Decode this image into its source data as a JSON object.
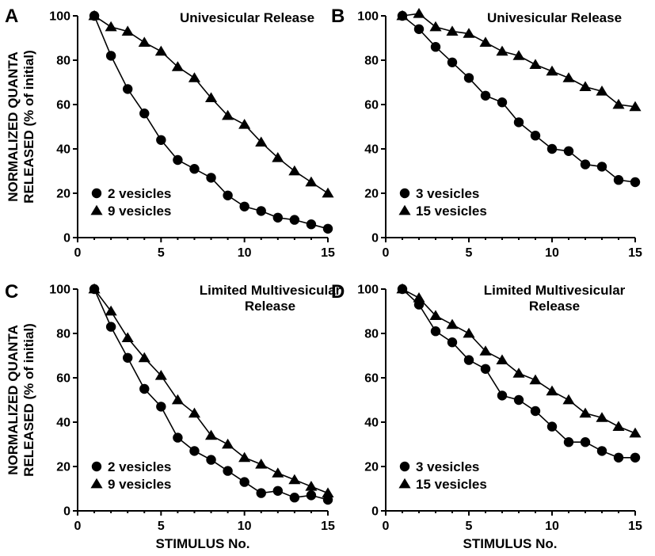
{
  "figure": {
    "ylabel_lines": [
      "NORMALIZED QUANTA",
      "RELEASED (% of initial)"
    ],
    "xlabel": "STIMULUS No."
  },
  "chart_data": [
    {
      "type": "line",
      "panel_label": "A",
      "title_lines": [
        "Univesicular Release"
      ],
      "xlim": [
        0,
        15
      ],
      "ylim": [
        0,
        100
      ],
      "xticks": [
        0,
        5,
        10,
        15
      ],
      "yticks": [
        0,
        20,
        40,
        60,
        80,
        100
      ],
      "x": [
        1,
        2,
        3,
        4,
        5,
        6,
        7,
        8,
        9,
        10,
        11,
        12,
        13,
        14,
        15
      ],
      "series": [
        {
          "name": "2 vesicles",
          "marker": "circle",
          "values": [
            100,
            82,
            67,
            56,
            44,
            35,
            31,
            27,
            19,
            14,
            12,
            9,
            8,
            6,
            4
          ]
        },
        {
          "name": "9 vesicles",
          "marker": "triangle",
          "values": [
            100,
            95,
            93,
            88,
            84,
            77,
            72,
            63,
            55,
            51,
            43,
            36,
            30,
            25,
            20
          ]
        }
      ],
      "legend_placement": "bottom-left",
      "show_xlabel": false
    },
    {
      "type": "line",
      "panel_label": "B",
      "title_lines": [
        "Univesicular Release"
      ],
      "xlim": [
        0,
        15
      ],
      "ylim": [
        0,
        100
      ],
      "xticks": [
        0,
        5,
        10,
        15
      ],
      "yticks": [
        0,
        20,
        40,
        60,
        80,
        100
      ],
      "x": [
        1,
        2,
        3,
        4,
        5,
        6,
        7,
        8,
        9,
        10,
        11,
        12,
        13,
        14,
        15
      ],
      "series": [
        {
          "name": "3 vesicles",
          "marker": "circle",
          "values": [
            100,
            94,
            86,
            79,
            72,
            64,
            61,
            52,
            46,
            40,
            39,
            33,
            32,
            26,
            25
          ]
        },
        {
          "name": "15 vesicles",
          "marker": "triangle",
          "values": [
            100,
            101,
            95,
            93,
            92,
            88,
            84,
            82,
            78,
            75,
            72,
            68,
            66,
            60,
            59
          ]
        }
      ],
      "legend_placement": "bottom-left",
      "show_xlabel": false
    },
    {
      "type": "line",
      "panel_label": "C",
      "title_lines": [
        "Limited Multivesicular",
        "Release"
      ],
      "xlim": [
        0,
        15
      ],
      "ylim": [
        0,
        100
      ],
      "xticks": [
        0,
        5,
        10,
        15
      ],
      "yticks": [
        0,
        20,
        40,
        60,
        80,
        100
      ],
      "x": [
        1,
        2,
        3,
        4,
        5,
        6,
        7,
        8,
        9,
        10,
        11,
        12,
        13,
        14,
        15
      ],
      "series": [
        {
          "name": "2 vesicles",
          "marker": "circle",
          "values": [
            100,
            83,
            69,
            55,
            47,
            33,
            27,
            23,
            18,
            13,
            8,
            9,
            6,
            7,
            5
          ]
        },
        {
          "name": "9 vesicles",
          "marker": "triangle",
          "values": [
            100,
            90,
            78,
            69,
            61,
            50,
            44,
            34,
            30,
            24,
            21,
            17,
            14,
            11,
            8
          ]
        }
      ],
      "legend_placement": "bottom-left",
      "show_xlabel": true
    },
    {
      "type": "line",
      "panel_label": "D",
      "title_lines": [
        "Limited Multivesicular",
        "Release"
      ],
      "xlim": [
        0,
        15
      ],
      "ylim": [
        0,
        100
      ],
      "xticks": [
        0,
        5,
        10,
        15
      ],
      "yticks": [
        0,
        20,
        40,
        60,
        80,
        100
      ],
      "x": [
        1,
        2,
        3,
        4,
        5,
        6,
        7,
        8,
        9,
        10,
        11,
        12,
        13,
        14,
        15
      ],
      "series": [
        {
          "name": "3 vesicles",
          "marker": "circle",
          "values": [
            100,
            93,
            81,
            76,
            68,
            64,
            52,
            50,
            45,
            38,
            31,
            31,
            27,
            24,
            24
          ]
        },
        {
          "name": "15 vesicles",
          "marker": "triangle",
          "values": [
            100,
            96,
            88,
            84,
            80,
            72,
            68,
            62,
            59,
            54,
            50,
            44,
            42,
            38,
            35
          ]
        }
      ],
      "legend_placement": "bottom-left",
      "show_xlabel": true
    }
  ]
}
